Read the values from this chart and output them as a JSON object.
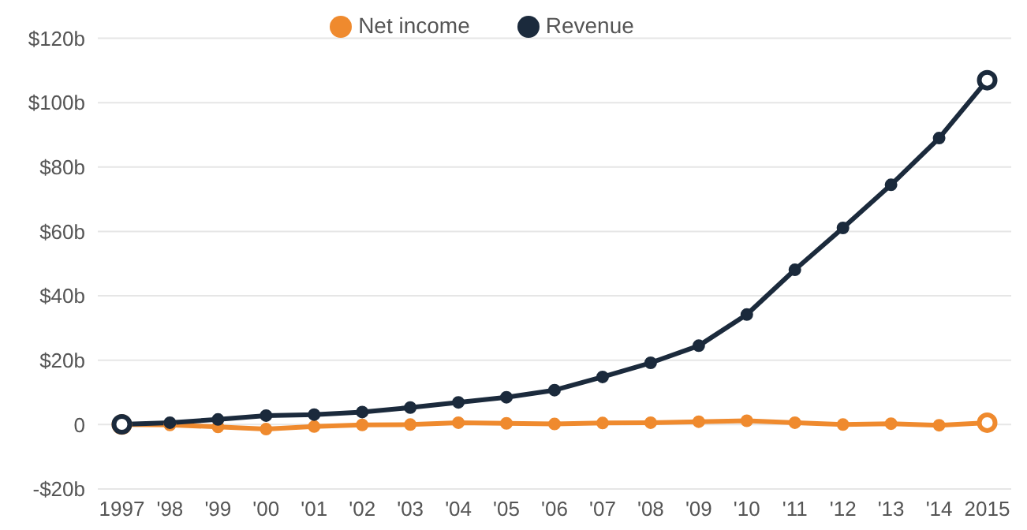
{
  "chart_data": {
    "type": "line",
    "categories": [
      "1997",
      "'98",
      "'99",
      "'00",
      "'01",
      "'02",
      "'03",
      "'04",
      "'05",
      "'06",
      "'07",
      "'08",
      "'09",
      "'10",
      "'11",
      "'12",
      "'13",
      "'14",
      "2015"
    ],
    "series": [
      {
        "name": "Revenue",
        "color": "#1b2a3c",
        "values": [
          0.1,
          0.6,
          1.6,
          2.8,
          3.1,
          3.9,
          5.3,
          6.9,
          8.5,
          10.7,
          14.8,
          19.2,
          24.5,
          34.2,
          48.1,
          61.1,
          74.5,
          89.0,
          107.0
        ]
      },
      {
        "name": "Net income",
        "color": "#ef8a2e",
        "values": [
          0.0,
          -0.1,
          -0.7,
          -1.4,
          -0.6,
          -0.1,
          0.0,
          0.6,
          0.4,
          0.2,
          0.5,
          0.6,
          0.9,
          1.2,
          0.6,
          0.0,
          0.3,
          -0.2,
          0.6
        ]
      }
    ],
    "ylim": [
      -20,
      120
    ],
    "yticks": [
      {
        "value": -20,
        "label": "-$20b"
      },
      {
        "value": 0,
        "label": "0"
      },
      {
        "value": 20,
        "label": "$20b"
      },
      {
        "value": 40,
        "label": "$40b"
      },
      {
        "value": 60,
        "label": "$60b"
      },
      {
        "value": 80,
        "label": "$80b"
      },
      {
        "value": 100,
        "label": "$100b"
      },
      {
        "value": 120,
        "label": "$120b"
      }
    ],
    "grid": "y",
    "legend": "top",
    "marker": "circle",
    "line_style": "solid"
  }
}
